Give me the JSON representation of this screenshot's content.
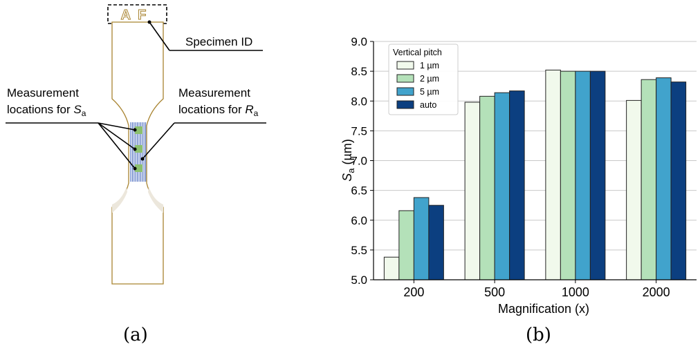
{
  "panel_a": {
    "specimen_label": "Specimen ID",
    "ra_label_line1": "Measurement",
    "ra_label_line2": "locations for ",
    "ra_symbol": "R",
    "ra_sub": "a",
    "sa_label_line1": "Measurement",
    "sa_label_line2": "locations for ",
    "sa_symbol": "S",
    "sa_sub": "a",
    "id_marks": "AF",
    "caption": "(a)"
  },
  "panel_b": {
    "caption": "(b)"
  },
  "colors": {
    "series": [
      "#f1f9ec",
      "#b4e1b9",
      "#41a3cc",
      "#0c3f80"
    ],
    "outline": "#a8832f",
    "stripes": "#3b5fb8",
    "spots": "#8cc06f"
  },
  "chart_data": {
    "type": "bar",
    "categories": [
      "200",
      "500",
      "1000",
      "2000"
    ],
    "series": [
      {
        "name": "1 µm",
        "values": [
          5.38,
          7.98,
          8.52,
          8.01
        ]
      },
      {
        "name": "2 µm",
        "values": [
          6.16,
          8.08,
          8.5,
          8.36
        ]
      },
      {
        "name": "5 µm",
        "values": [
          6.38,
          8.14,
          8.5,
          8.39
        ]
      },
      {
        "name": "auto",
        "values": [
          6.25,
          8.17,
          8.5,
          8.32
        ]
      }
    ],
    "xlabel": "Magnification (x)",
    "ylabel_symbol": "S",
    "ylabel_sub": "a",
    "ylabel_unit": " (µm)",
    "ylim": [
      5.0,
      9.0
    ],
    "yticks": [
      "5.0",
      "5.5",
      "6.0",
      "6.5",
      "7.0",
      "7.5",
      "8.0",
      "8.5",
      "9.0"
    ],
    "grid": "horizontal",
    "legend_title": "Vertical pitch",
    "legend_position": "top-left"
  }
}
